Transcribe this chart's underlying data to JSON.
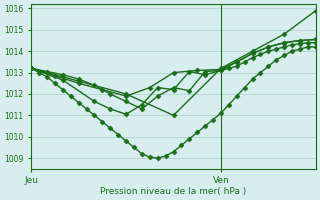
{
  "xlabel": "Pression niveau de la mer( hPa )",
  "ylim": [
    1008.5,
    1016.2
  ],
  "xlim": [
    0,
    36
  ],
  "yticks": [
    1009,
    1010,
    1011,
    1012,
    1013,
    1014,
    1015,
    1016
  ],
  "xtick_positions": [
    0,
    24
  ],
  "xtick_labels": [
    "Jeu",
    "Ven"
  ],
  "vline_x": 24,
  "bg_color": "#d8eeee",
  "grid_color": "#aacccc",
  "line_color": "#1a6e1a",
  "marker": "D",
  "markersize": 2.5,
  "linewidth": 1.0,
  "series1_x": [
    0,
    1,
    2,
    3,
    4,
    5,
    6,
    7,
    8,
    9,
    10,
    11,
    12,
    13,
    14,
    15,
    16,
    17,
    18,
    19,
    20,
    21,
    22,
    23,
    24,
    25,
    26,
    27,
    28,
    29,
    30,
    31,
    32,
    33,
    34,
    35,
    36
  ],
  "series1_y": [
    1013.2,
    1013.0,
    1012.8,
    1012.5,
    1012.2,
    1011.9,
    1011.6,
    1011.3,
    1011.0,
    1010.7,
    1010.4,
    1010.1,
    1009.8,
    1009.5,
    1009.2,
    1009.05,
    1009.0,
    1009.1,
    1009.3,
    1009.6,
    1009.9,
    1010.2,
    1010.5,
    1010.8,
    1011.1,
    1011.5,
    1011.9,
    1012.3,
    1012.7,
    1013.0,
    1013.3,
    1013.6,
    1013.8,
    1014.0,
    1014.1,
    1014.2,
    1014.2
  ],
  "series2_x": [
    0,
    2,
    4,
    6,
    8,
    10,
    12,
    14,
    16,
    18,
    20,
    22,
    24,
    25,
    26,
    27,
    28,
    29,
    30,
    31,
    32,
    33,
    34,
    35,
    36
  ],
  "series2_y": [
    1013.2,
    1013.05,
    1012.9,
    1012.7,
    1012.4,
    1012.0,
    1011.65,
    1011.3,
    1011.9,
    1012.3,
    1012.15,
    1013.05,
    1013.1,
    1013.2,
    1013.3,
    1013.5,
    1013.7,
    1013.85,
    1014.0,
    1014.1,
    1014.2,
    1014.3,
    1014.35,
    1014.4,
    1014.4
  ],
  "series3_x": [
    0,
    3,
    6,
    9,
    12,
    15,
    18,
    21,
    24,
    26,
    28,
    30,
    32,
    34,
    36
  ],
  "series3_y": [
    1013.2,
    1012.85,
    1012.5,
    1012.2,
    1011.9,
    1012.3,
    1013.0,
    1013.1,
    1013.15,
    1013.5,
    1013.9,
    1014.2,
    1014.4,
    1014.5,
    1014.55
  ],
  "series4_x": [
    0,
    4,
    8,
    10,
    12,
    14,
    16,
    18,
    20,
    22,
    24,
    26,
    28,
    30,
    32,
    34,
    36
  ],
  "series4_y": [
    1013.2,
    1012.65,
    1011.65,
    1011.3,
    1011.05,
    1011.5,
    1012.3,
    1012.2,
    1013.05,
    1012.9,
    1013.1,
    1013.5,
    1013.9,
    1014.2,
    1014.4,
    1014.5,
    1014.55
  ],
  "series5_x": [
    0,
    6,
    12,
    18,
    24,
    28,
    32,
    36
  ],
  "series5_y": [
    1013.2,
    1012.6,
    1012.0,
    1011.0,
    1013.2,
    1014.0,
    1014.8,
    1015.9
  ]
}
